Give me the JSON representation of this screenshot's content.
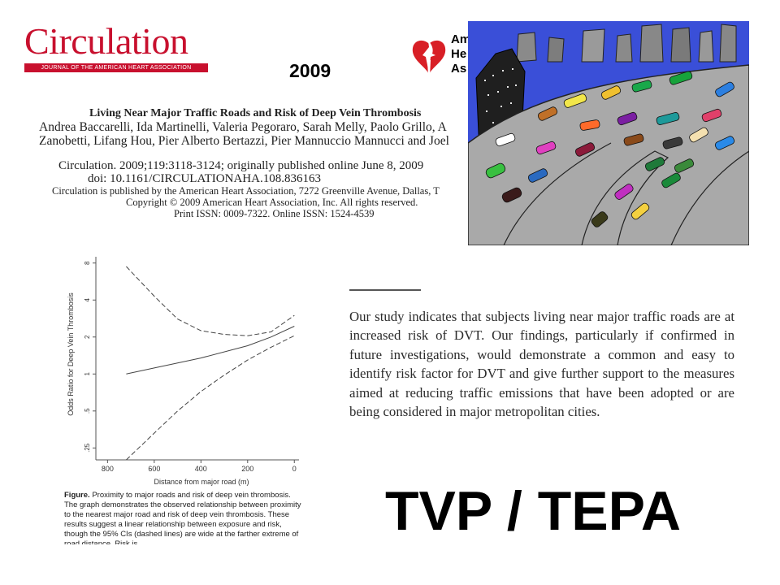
{
  "journal": {
    "name": "Circulation",
    "subtitle": "JOURNAL OF THE AMERICAN HEART ASSOCIATION"
  },
  "year": "2009",
  "aha_text": [
    "Am",
    "He",
    "As"
  ],
  "citation": {
    "title": "Living Near Major Traffic Roads and Risk of Deep Vein Thrombosis",
    "authors_line1": "Andrea Baccarelli, Ida Martinelli, Valeria Pegoraro, Sarah Melly, Paolo Grillo, A",
    "authors_line2": "Zanobetti, Lifang Hou, Pier Alberto Bertazzi, Pier Mannuccio Mannucci and Joel",
    "journal_line": "Circulation. 2009;119:3118-3124; originally published online June 8, 2009",
    "doi": "doi: 10.1161/CIRCULATIONAHA.108.836163",
    "publisher": "Circulation is published by the American Heart Association, 7272 Greenville Avenue, Dallas, T",
    "copyright": "Copyright © 2009 American Heart Association, Inc. All rights reserved.",
    "issn": "Print ISSN: 0009-7322. Online ISSN: 1524-4539"
  },
  "chart_data": {
    "type": "line",
    "xlabel": "Distance from major road (m)",
    "ylabel": "Odds Ratio for Deep Vein Thrombosis",
    "x_ticks": [
      800,
      600,
      400,
      200,
      0
    ],
    "y_ticks": [
      ".25",
      ".5",
      "1",
      "2",
      "4",
      "8"
    ],
    "y_scale": "log",
    "x_reversed": true,
    "xlim": [
      850,
      -20
    ],
    "ylim": [
      0.2,
      9
    ],
    "series": [
      {
        "style": "solid",
        "x": [
          720,
          600,
          400,
          200,
          100,
          0
        ],
        "y": [
          1.0,
          1.12,
          1.35,
          1.7,
          2.0,
          2.45
        ]
      },
      {
        "style": "dashed",
        "x": [
          720,
          600,
          500,
          400,
          300,
          200,
          100,
          0
        ],
        "y": [
          7.5,
          4.3,
          2.8,
          2.25,
          2.1,
          2.05,
          2.2,
          3.0
        ]
      },
      {
        "style": "dashed",
        "x": [
          720,
          600,
          500,
          400,
          300,
          200,
          100,
          0
        ],
        "y": [
          0.2,
          0.33,
          0.5,
          0.72,
          0.98,
          1.3,
          1.65,
          2.05
        ]
      }
    ]
  },
  "caption": {
    "label": "Figure.",
    "text": "Proximity to major roads and risk of deep vein thrombosis. The graph demonstrates the observed relationship between proximity to the nearest major road and risk of deep vein thrombosis. These results suggest a linear relationship between exposure and risk, though the 95% CIs (dashed lines) are wide at the farther extreme of road distance. Risk is"
  },
  "conclusion": "Our study indicates that subjects living near major traffic roads are at increased risk of DVT. Our findings, particularly if confirmed in future investigations, would demonstrate a common and easy to identify risk factor for DVT and give further support to the measures aimed at reducing traffic emissions that have been adopted or are being considered in major metropolitan cities.",
  "big_label": "TVP / TEPA",
  "colors": {
    "journal_red": "#c8102e",
    "sky": "#3a4fd8",
    "road": "#a9a9a9"
  }
}
